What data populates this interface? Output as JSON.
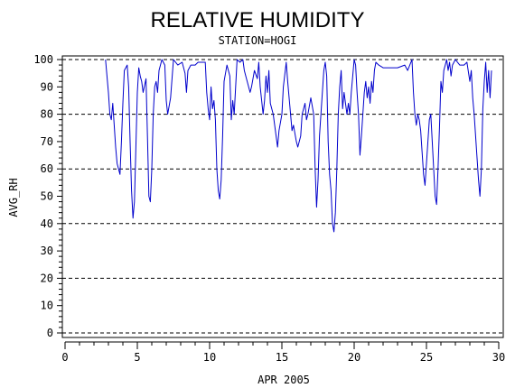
{
  "chart_data": {
    "type": "line",
    "title": "RELATIVE HUMIDITY",
    "subtitle": "STATION=HOGI",
    "xlabel": "APR 2005",
    "ylabel": "AVG_RH",
    "xlim": [
      0,
      30
    ],
    "ylim": [
      0,
      100
    ],
    "x_ticks": [
      0,
      5,
      10,
      15,
      20,
      25,
      30
    ],
    "y_ticks": [
      0,
      10,
      20,
      30,
      40,
      50,
      60,
      70,
      80,
      90,
      100
    ],
    "grid": "horizontal-dashed",
    "dashed_gridlines": [
      0,
      20,
      40,
      60,
      80,
      100
    ],
    "series": [
      {
        "color": "#0000cc",
        "points": [
          [
            2.8,
            100
          ],
          [
            3.0,
            88
          ],
          [
            3.1,
            80
          ],
          [
            3.2,
            78
          ],
          [
            3.3,
            84
          ],
          [
            3.4,
            76
          ],
          [
            3.5,
            68
          ],
          [
            3.6,
            62
          ],
          [
            3.8,
            58
          ],
          [
            3.9,
            70
          ],
          [
            4.0,
            84
          ],
          [
            4.1,
            96
          ],
          [
            4.3,
            98
          ],
          [
            4.4,
            90
          ],
          [
            4.5,
            70
          ],
          [
            4.6,
            52
          ],
          [
            4.7,
            42
          ],
          [
            4.8,
            48
          ],
          [
            4.9,
            68
          ],
          [
            5.0,
            88
          ],
          [
            5.1,
            97
          ],
          [
            5.2,
            94
          ],
          [
            5.3,
            92
          ],
          [
            5.4,
            88
          ],
          [
            5.6,
            93
          ],
          [
            5.7,
            72
          ],
          [
            5.8,
            50
          ],
          [
            5.9,
            48
          ],
          [
            6.0,
            60
          ],
          [
            6.1,
            80
          ],
          [
            6.2,
            90
          ],
          [
            6.3,
            92
          ],
          [
            6.4,
            88
          ],
          [
            6.5,
            96
          ],
          [
            6.7,
            100
          ],
          [
            6.9,
            98
          ],
          [
            7.0,
            85
          ],
          [
            7.1,
            80
          ],
          [
            7.3,
            86
          ],
          [
            7.5,
            100
          ],
          [
            7.8,
            98
          ],
          [
            8.1,
            99
          ],
          [
            8.3,
            95
          ],
          [
            8.4,
            88
          ],
          [
            8.5,
            96
          ],
          [
            8.7,
            98
          ],
          [
            9.0,
            98
          ],
          [
            9.2,
            99
          ],
          [
            9.5,
            99
          ],
          [
            9.7,
            99
          ],
          [
            9.8,
            88
          ],
          [
            9.9,
            82
          ],
          [
            10.0,
            78
          ],
          [
            10.1,
            90
          ],
          [
            10.2,
            82
          ],
          [
            10.3,
            85
          ],
          [
            10.4,
            78
          ],
          [
            10.5,
            60
          ],
          [
            10.6,
            52
          ],
          [
            10.7,
            49
          ],
          [
            10.8,
            56
          ],
          [
            10.9,
            72
          ],
          [
            11.0,
            92
          ],
          [
            11.2,
            98
          ],
          [
            11.4,
            94
          ],
          [
            11.5,
            78
          ],
          [
            11.6,
            85
          ],
          [
            11.7,
            80
          ],
          [
            11.8,
            90
          ],
          [
            11.9,
            100
          ],
          [
            12.1,
            99
          ],
          [
            12.3,
            100
          ],
          [
            12.4,
            96
          ],
          [
            12.6,
            92
          ],
          [
            12.8,
            88
          ],
          [
            12.9,
            90
          ],
          [
            13.1,
            96
          ],
          [
            13.3,
            93
          ],
          [
            13.4,
            99
          ],
          [
            13.5,
            90
          ],
          [
            13.7,
            80
          ],
          [
            13.8,
            85
          ],
          [
            13.9,
            94
          ],
          [
            14.0,
            88
          ],
          [
            14.1,
            96
          ],
          [
            14.2,
            84
          ],
          [
            14.4,
            80
          ],
          [
            14.5,
            76
          ],
          [
            14.6,
            72
          ],
          [
            14.7,
            68
          ],
          [
            14.8,
            74
          ],
          [
            15.0,
            80
          ],
          [
            15.1,
            90
          ],
          [
            15.3,
            99
          ],
          [
            15.4,
            92
          ],
          [
            15.5,
            86
          ],
          [
            15.6,
            80
          ],
          [
            15.7,
            74
          ],
          [
            15.8,
            76
          ],
          [
            16.0,
            70
          ],
          [
            16.1,
            68
          ],
          [
            16.3,
            72
          ],
          [
            16.4,
            80
          ],
          [
            16.6,
            84
          ],
          [
            16.7,
            78
          ],
          [
            16.8,
            80
          ],
          [
            17.0,
            86
          ],
          [
            17.2,
            80
          ],
          [
            17.3,
            60
          ],
          [
            17.4,
            46
          ],
          [
            17.5,
            56
          ],
          [
            17.6,
            72
          ],
          [
            17.7,
            80
          ],
          [
            17.9,
            96
          ],
          [
            18.0,
            99
          ],
          [
            18.1,
            94
          ],
          [
            18.2,
            70
          ],
          [
            18.3,
            58
          ],
          [
            18.4,
            52
          ],
          [
            18.5,
            40
          ],
          [
            18.6,
            37
          ],
          [
            18.7,
            44
          ],
          [
            18.8,
            60
          ],
          [
            18.9,
            80
          ],
          [
            19.0,
            90
          ],
          [
            19.1,
            96
          ],
          [
            19.2,
            82
          ],
          [
            19.3,
            88
          ],
          [
            19.4,
            84
          ],
          [
            19.5,
            80
          ],
          [
            19.6,
            84
          ],
          [
            19.7,
            80
          ],
          [
            19.8,
            88
          ],
          [
            20.0,
            100
          ],
          [
            20.1,
            98
          ],
          [
            20.2,
            88
          ],
          [
            20.3,
            80
          ],
          [
            20.4,
            65
          ],
          [
            20.5,
            72
          ],
          [
            20.6,
            80
          ],
          [
            20.7,
            88
          ],
          [
            20.8,
            92
          ],
          [
            20.9,
            86
          ],
          [
            21.0,
            90
          ],
          [
            21.1,
            84
          ],
          [
            21.2,
            92
          ],
          [
            21.3,
            88
          ],
          [
            21.4,
            96
          ],
          [
            21.5,
            99
          ],
          [
            21.7,
            98
          ],
          [
            22.0,
            97
          ],
          [
            22.5,
            97
          ],
          [
            23.0,
            97
          ],
          [
            23.5,
            98
          ],
          [
            23.7,
            96
          ],
          [
            24.0,
            100
          ],
          [
            24.1,
            88
          ],
          [
            24.2,
            80
          ],
          [
            24.3,
            76
          ],
          [
            24.4,
            80
          ],
          [
            24.5,
            78
          ],
          [
            24.6,
            74
          ],
          [
            24.7,
            66
          ],
          [
            24.8,
            58
          ],
          [
            24.9,
            54
          ],
          [
            25.0,
            62
          ],
          [
            25.1,
            70
          ],
          [
            25.2,
            78
          ],
          [
            25.3,
            80
          ],
          [
            25.4,
            70
          ],
          [
            25.5,
            60
          ],
          [
            25.6,
            50
          ],
          [
            25.7,
            47
          ],
          [
            25.8,
            60
          ],
          [
            25.9,
            75
          ],
          [
            26.0,
            92
          ],
          [
            26.1,
            88
          ],
          [
            26.2,
            96
          ],
          [
            26.4,
            100
          ],
          [
            26.5,
            96
          ],
          [
            26.6,
            99
          ],
          [
            26.7,
            94
          ],
          [
            26.8,
            98
          ],
          [
            27.0,
            100
          ],
          [
            27.3,
            98
          ],
          [
            27.6,
            98
          ],
          [
            27.8,
            99
          ],
          [
            28.0,
            92
          ],
          [
            28.1,
            96
          ],
          [
            28.2,
            86
          ],
          [
            28.3,
            80
          ],
          [
            28.4,
            72
          ],
          [
            28.5,
            64
          ],
          [
            28.6,
            56
          ],
          [
            28.7,
            50
          ],
          [
            28.8,
            60
          ],
          [
            28.9,
            82
          ],
          [
            29.0,
            92
          ],
          [
            29.1,
            99
          ],
          [
            29.2,
            88
          ],
          [
            29.3,
            96
          ],
          [
            29.4,
            86
          ],
          [
            29.5,
            96
          ]
        ]
      }
    ]
  }
}
